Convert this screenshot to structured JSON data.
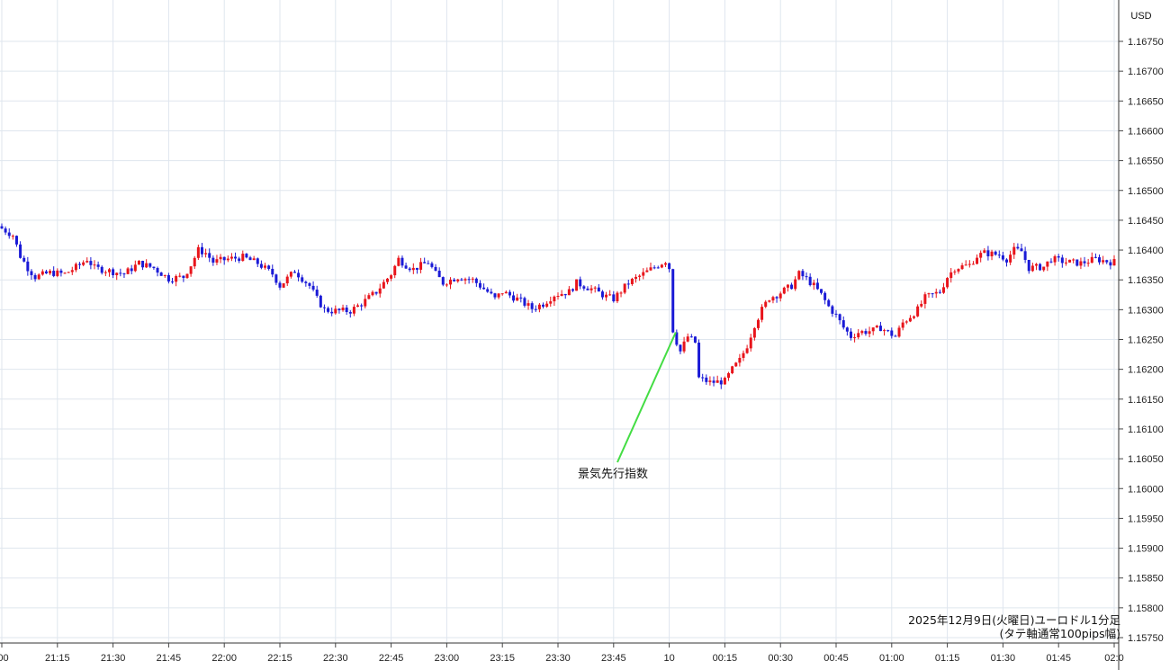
{
  "chart_data": {
    "type": "candlestick",
    "currency": "USD",
    "y_ticks": [
      "1.16750",
      "1.16700",
      "1.16650",
      "1.16600",
      "1.16550",
      "1.16500",
      "1.16450",
      "1.16400",
      "1.16350",
      "1.16300",
      "1.16250",
      "1.16200",
      "1.16150",
      "1.16100",
      "1.16050",
      "1.16000",
      "1.15950",
      "1.15900",
      "1.15850",
      "1.15800",
      "1.15750"
    ],
    "ylim": [
      1.15735,
      1.1679
    ],
    "x_ticks": [
      ":00",
      "21:15",
      "21:30",
      "21:45",
      "22:00",
      "22:15",
      "22:30",
      "22:45",
      "23:00",
      "23:15",
      "23:30",
      "23:45",
      "10",
      "00:15",
      "00:30",
      "00:45",
      "01:00",
      "01:15",
      "01:30",
      "01:45",
      "02:0"
    ],
    "x_range_minutes": [
      0,
      300
    ],
    "grid": true,
    "up_color": "#e8141b",
    "down_color": "#1a1ad6",
    "annotation": {
      "text": "景気先行指数",
      "minute": 182,
      "price": 1.16262,
      "line_color": "#44dd44"
    },
    "caption": [
      "2025年12月9日(火曜日)ユーロドル1分足",
      "(タテ軸通常100pips幅)"
    ],
    "path_points": [
      [
        0,
        1.1644
      ],
      [
        4,
        1.16425
      ],
      [
        6,
        1.1639
      ],
      [
        8,
        1.1637
      ],
      [
        10,
        1.16355
      ],
      [
        14,
        1.16362
      ],
      [
        18,
        1.1636
      ],
      [
        22,
        1.16375
      ],
      [
        24,
        1.16385
      ],
      [
        26,
        1.1637
      ],
      [
        30,
        1.16365
      ],
      [
        34,
        1.1636
      ],
      [
        38,
        1.16378
      ],
      [
        42,
        1.1637
      ],
      [
        46,
        1.16352
      ],
      [
        50,
        1.16355
      ],
      [
        52,
        1.16375
      ],
      [
        54,
        1.164
      ],
      [
        56,
        1.16395
      ],
      [
        58,
        1.1638
      ],
      [
        62,
        1.16385
      ],
      [
        66,
        1.16388
      ],
      [
        70,
        1.16378
      ],
      [
        74,
        1.1636
      ],
      [
        76,
        1.1634
      ],
      [
        80,
        1.16365
      ],
      [
        84,
        1.1634
      ],
      [
        86,
        1.16318
      ],
      [
        88,
        1.163
      ],
      [
        90,
        1.16298
      ],
      [
        95,
        1.16298
      ],
      [
        98,
        1.1631
      ],
      [
        102,
        1.1633
      ],
      [
        106,
        1.1636
      ],
      [
        108,
        1.16385
      ],
      [
        110,
        1.16375
      ],
      [
        112,
        1.16368
      ],
      [
        116,
        1.1638
      ],
      [
        118,
        1.1636
      ],
      [
        120,
        1.16345
      ],
      [
        124,
        1.16355
      ],
      [
        128,
        1.1635
      ],
      [
        130,
        1.1634
      ],
      [
        132,
        1.1633
      ],
      [
        134,
        1.16318
      ],
      [
        136,
        1.1633
      ],
      [
        140,
        1.16318
      ],
      [
        144,
        1.16302
      ],
      [
        147,
        1.1631
      ],
      [
        150,
        1.16325
      ],
      [
        154,
        1.1633
      ],
      [
        156,
        1.16345
      ],
      [
        160,
        1.16335
      ],
      [
        164,
        1.16322
      ],
      [
        166,
        1.16318
      ],
      [
        170,
        1.16345
      ],
      [
        174,
        1.1636
      ],
      [
        178,
        1.16375
      ],
      [
        180,
        1.16382
      ],
      [
        181,
        1.1637
      ],
      [
        182,
        1.16262
      ],
      [
        184,
        1.1623
      ],
      [
        186,
        1.16255
      ],
      [
        188,
        1.16245
      ],
      [
        189,
        1.16185
      ],
      [
        192,
        1.16178
      ],
      [
        196,
        1.1618
      ],
      [
        198,
        1.162
      ],
      [
        200,
        1.16215
      ],
      [
        202,
        1.1624
      ],
      [
        204,
        1.16275
      ],
      [
        206,
        1.163
      ],
      [
        208,
        1.1632
      ],
      [
        210,
        1.16325
      ],
      [
        214,
        1.1634
      ],
      [
        216,
        1.1636
      ],
      [
        218,
        1.16352
      ],
      [
        220,
        1.1634
      ],
      [
        222,
        1.16325
      ],
      [
        224,
        1.16305
      ],
      [
        226,
        1.1629
      ],
      [
        228,
        1.1627
      ],
      [
        230,
        1.16255
      ],
      [
        232,
        1.16262
      ],
      [
        236,
        1.16265
      ],
      [
        238,
        1.1627
      ],
      [
        240,
        1.16262
      ],
      [
        242,
        1.16255
      ],
      [
        244,
        1.16278
      ],
      [
        248,
        1.163
      ],
      [
        250,
        1.1632
      ],
      [
        254,
        1.1633
      ],
      [
        256,
        1.16355
      ],
      [
        258,
        1.1637
      ],
      [
        262,
        1.16375
      ],
      [
        264,
        1.1639
      ],
      [
        266,
        1.16395
      ],
      [
        270,
        1.16392
      ],
      [
        272,
        1.16385
      ],
      [
        274,
        1.164
      ],
      [
        276,
        1.16398
      ],
      [
        278,
        1.1637
      ],
      [
        282,
        1.16372
      ],
      [
        284,
        1.16385
      ],
      [
        288,
        1.1638
      ],
      [
        292,
        1.16378
      ],
      [
        296,
        1.16385
      ],
      [
        300,
        1.1638
      ]
    ]
  }
}
